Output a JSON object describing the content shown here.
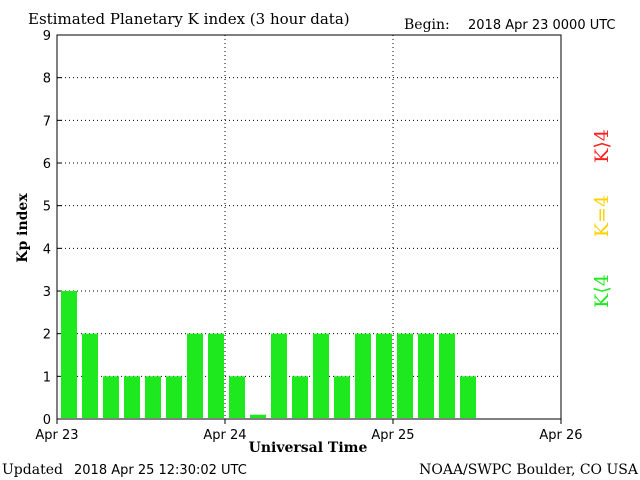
{
  "header": {
    "title": "Estimated Planetary K index (3 hour data)",
    "begin_label": "Begin:",
    "begin_value": "2018 Apr 23 0000 UTC"
  },
  "footer": {
    "updated_label": "Updated",
    "updated_value": "2018 Apr 25 12:30:02 UTC",
    "source": "NOAA/SWPC Boulder, CO USA"
  },
  "legend": {
    "above": "K⟩4",
    "equal": "K=4",
    "below": "K⟨4",
    "colors": {
      "above": "#ff2020",
      "equal": "#ffd000",
      "below": "#1ee81e"
    }
  },
  "chart_data": {
    "type": "bar",
    "title": "Estimated Planetary K index (3 hour data)",
    "xlabel": "Universal Time",
    "ylabel": "Kp index",
    "ylim": [
      0,
      9
    ],
    "yticks": [
      0,
      1,
      2,
      3,
      4,
      5,
      6,
      7,
      8,
      9
    ],
    "x_tick_labels": [
      "Apr 23",
      "Apr 24",
      "Apr 25",
      "Apr 26"
    ],
    "x_interval_hours": 3,
    "x_range_hours": [
      0,
      72
    ],
    "values": [
      3,
      2,
      1,
      1,
      1,
      1,
      2,
      2,
      1,
      0.1,
      2,
      1,
      2,
      1,
      2,
      2,
      2,
      2,
      2,
      1
    ],
    "bar_color": "#1ee81e",
    "grid": true
  }
}
